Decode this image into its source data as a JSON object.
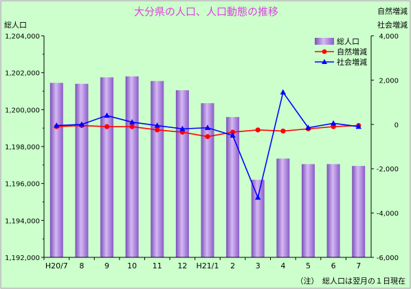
{
  "chart_data": {
    "type": "bar",
    "title": "大分県の人口、人口動態の推移",
    "left_axis_label": "総人口",
    "right_axis_label_1": "自然増減",
    "right_axis_label_2": "社会増減",
    "categories": [
      "H20/7",
      "8",
      "9",
      "10",
      "11",
      "12",
      "H21/1",
      "2",
      "3",
      "4",
      "5",
      "6",
      "7"
    ],
    "left_axis": {
      "min": 1192000,
      "max": 1204000,
      "step": 2000,
      "ticks": [
        "1,192,000",
        "1,194,000",
        "1,196,000",
        "1,198,000",
        "1,200,000",
        "1,202,000",
        "1,204,000"
      ]
    },
    "right_axis": {
      "min": -6000,
      "max": 4000,
      "step": 2000,
      "ticks": [
        "-6,000",
        "-4,000",
        "-2,000",
        "0",
        "2,000",
        "4,000"
      ]
    },
    "series": [
      {
        "name": "総人口",
        "kind": "bar",
        "axis": "left",
        "color": "#9966cc",
        "values": [
          1201450,
          1201400,
          1201750,
          1201800,
          1201550,
          1201050,
          1200350,
          1199600,
          1196200,
          1197350,
          1197050,
          1197050,
          1196950
        ]
      },
      {
        "name": "自然増減",
        "kind": "line",
        "axis": "right",
        "color": "#ff0000",
        "marker": "circle",
        "values": [
          -100,
          -50,
          -100,
          -100,
          -250,
          -350,
          -550,
          -350,
          -250,
          -300,
          -200,
          -100,
          -50
        ]
      },
      {
        "name": "社会増減",
        "kind": "line",
        "axis": "right",
        "color": "#0000ff",
        "marker": "triangle",
        "values": [
          -50,
          0,
          400,
          100,
          -50,
          -200,
          -150,
          -500,
          -3300,
          1450,
          -150,
          50,
          -100
        ]
      }
    ],
    "legend_position": "top-right",
    "grid": false,
    "note": "（注）　総人口は翌月の１日現在",
    "colors": {
      "background": "#ccffcc",
      "title": "#e040e0"
    }
  }
}
